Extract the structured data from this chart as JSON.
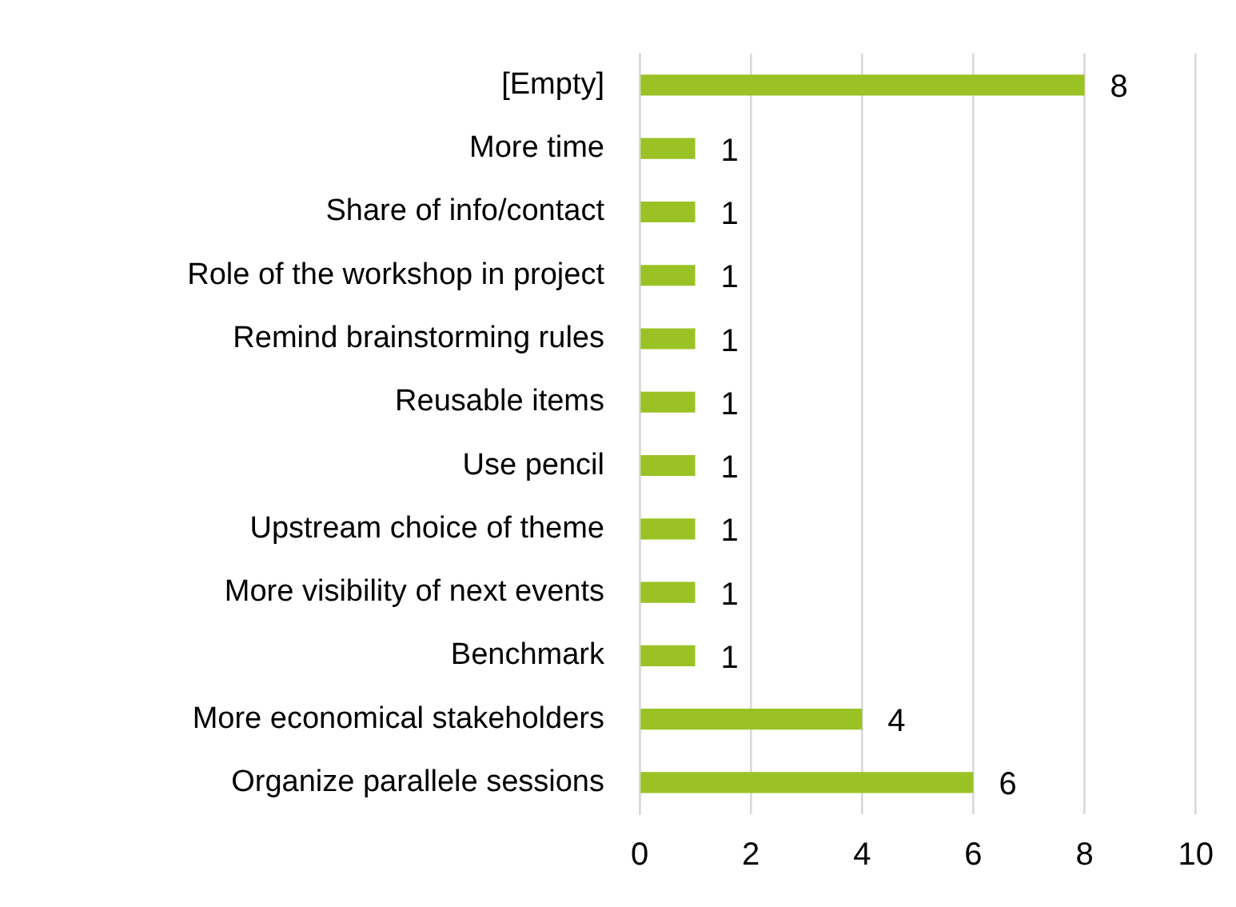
{
  "chart_data": {
    "type": "bar",
    "orientation": "horizontal",
    "categories": [
      "[Empty]",
      "More time",
      "Share of info/contact",
      "Role of the workshop in project",
      "Remind brainstorming rules",
      "Reusable items",
      "Use pencil",
      "Upstream choice of theme",
      "More visibility of next events",
      "Benchmark",
      "More economical stakeholders",
      "Organize parallele sessions"
    ],
    "values": [
      8,
      1,
      1,
      1,
      1,
      1,
      1,
      1,
      1,
      1,
      4,
      6
    ],
    "color": "#9bc225",
    "xlim": [
      0,
      10
    ],
    "xticks": [
      0,
      2,
      4,
      6,
      8,
      10
    ],
    "grid": "x",
    "data_labels": true
  }
}
